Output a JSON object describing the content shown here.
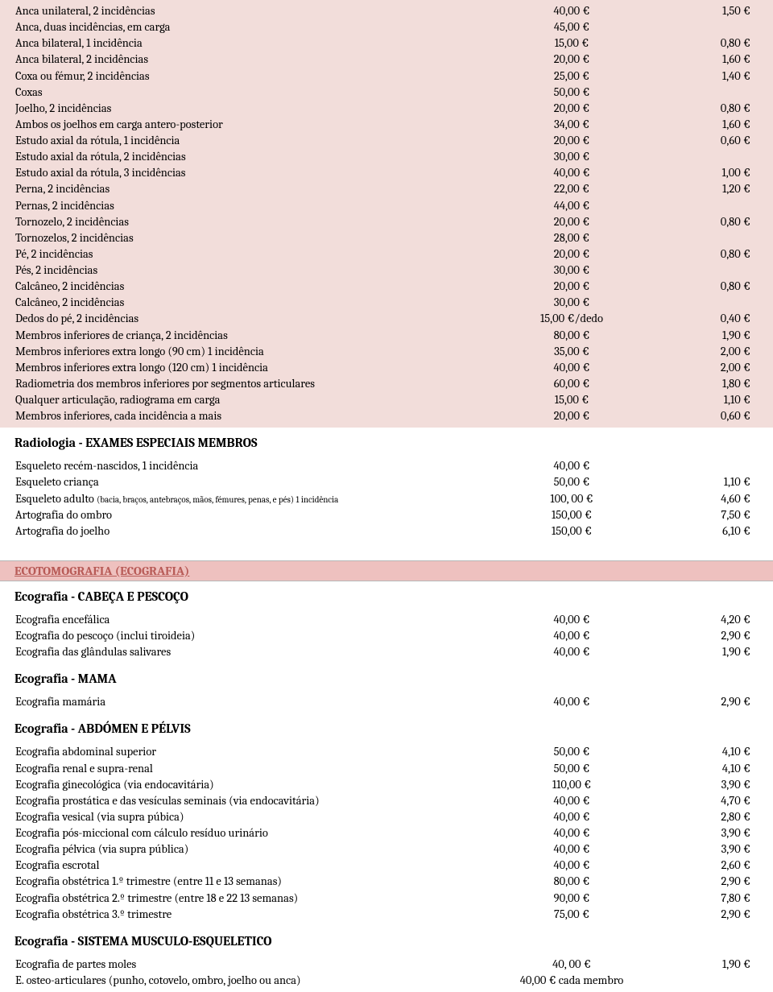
{
  "block1": {
    "rows": [
      {
        "desc": "Anca unilateral, 2 incidências",
        "c2": "40,00 €",
        "c3": "1,50 €"
      },
      {
        "desc": "Anca, duas incidências, em carga",
        "c2": "45,00 €",
        "c3": ""
      },
      {
        "desc": "Anca bilateral, 1 incidência",
        "c2": "15,00 €",
        "c3": "0,80 €"
      },
      {
        "desc": "Anca bilateral, 2 incidências",
        "c2": "20,00 €",
        "c3": "1,60 €"
      },
      {
        "desc": "Coxa ou fémur, 2 incidências",
        "c2": "25,00 €",
        "c3": "1,40 €"
      },
      {
        "desc": "Coxas",
        "c2": "50,00 €",
        "c3": ""
      },
      {
        "desc": "Joelho, 2 incidências",
        "c2": "20,00 €",
        "c3": "0,80 €"
      },
      {
        "desc": "Ambos os joelhos em carga antero-posterior",
        "c2": "34,00 €",
        "c3": "1,60 €"
      },
      {
        "desc": "Estudo axial da rótula, 1 incidência",
        "c2": "20,00 €",
        "c3": "0,60 €"
      },
      {
        "desc": "Estudo axial da rótula, 2 incidências",
        "c2": "30,00 €",
        "c3": ""
      },
      {
        "desc": "Estudo axial da rótula, 3 incidências",
        "c2": "40,00 €",
        "c3": "1,00 €"
      },
      {
        "desc": "Perna, 2 incidências",
        "c2": "22,00 €",
        "c3": "1,20 €"
      },
      {
        "desc": "Pernas, 2 incidências",
        "c2": "44,00 €",
        "c3": ""
      },
      {
        "desc": "Tornozelo, 2 incidências",
        "c2": "20,00 €",
        "c3": "0,80 €"
      },
      {
        "desc": "Tornozelos, 2 incidências",
        "c2": "28,00 €",
        "c3": ""
      },
      {
        "desc": "Pé, 2 incidências",
        "c2": "20,00 €",
        "c3": "0,80 €"
      },
      {
        "desc": "Pés, 2 incidências",
        "c2": "30,00 €",
        "c3": ""
      },
      {
        "desc": "Calcâneo, 2 incidências",
        "c2": "20,00 €",
        "c3": "0,80 €"
      },
      {
        "desc": "Calcâneo, 2 incidências",
        "c2": "30,00 €",
        "c3": ""
      },
      {
        "desc": "Dedos do pé, 2 incidências",
        "c2": "15,00 €/dedo",
        "c3": "0,40 €"
      },
      {
        "desc": "Membros inferiores de criança, 2 incidências",
        "c2": "80,00 €",
        "c3": "1,90 €"
      },
      {
        "desc": "Membros inferiores extra longo (90 cm) 1 incidência",
        "c2": "35,00 €",
        "c3": "2,00 €"
      },
      {
        "desc": "Membros inferiores extra longo (120 cm) 1 incidência",
        "c2": "40,00 €",
        "c3": "2,00 €"
      },
      {
        "desc": "Radiometria dos membros inferiores por segmentos articulares",
        "c2": "60,00 €",
        "c3": "1,80 €"
      },
      {
        "desc": "Qualquer articulação, radiograma em carga",
        "c2": "15,00 €",
        "c3": "1,10 €"
      },
      {
        "desc": "Membros inferiores, cada incidência a mais",
        "c2": "20,00 €",
        "c3": "0,60 €"
      }
    ]
  },
  "heading1": "Radiologia - EXAMES ESPECIAIS MEMBROS",
  "block2": {
    "rows": [
      {
        "desc": "Esqueleto recém-nascidos, 1 incidência",
        "c2": "40,00 €",
        "c3": ""
      },
      {
        "desc": "Esqueleto criança",
        "c2": "50,00 €",
        "c3": "1,10 €"
      },
      {
        "desc_main": "Esqueleto adulto ",
        "desc_sub": "(bacia, braços, antebraços, mãos, fémures, penas, e pés) 1 incidência",
        "c2": "100, 00 €",
        "c3": "4,60 €"
      },
      {
        "desc": "Artografia do ombro",
        "c2": "150,00 €",
        "c3": "7,50 €"
      },
      {
        "desc": "Artografia do joelho",
        "c2": "150,00 €",
        "c3": "6,10 €"
      }
    ]
  },
  "banner1": "ECOTOMOGRAFIA (ECOGRAFIA)",
  "heading2": "Ecografia - CABEÇA E PESCOÇO",
  "block3": {
    "rows": [
      {
        "desc": "Ecografia encefálica",
        "c2": "40,00 €",
        "c3": "4,20 €"
      },
      {
        "desc": "Ecografia do pescoço (inclui tiroideia)",
        "c2": "40,00 €",
        "c3": "2,90 €"
      },
      {
        "desc": "Ecografia das glândulas salivares",
        "c2": "40,00 €",
        "c3": "1,90 €"
      }
    ]
  },
  "heading3": "Ecografia - MAMA",
  "block4": {
    "rows": [
      {
        "desc": "Ecografia mamária",
        "c2": "40,00 €",
        "c3": "2,90 €"
      }
    ]
  },
  "heading4": "Ecografia - ABDÓMEN E PÉLVIS",
  "block5": {
    "rows": [
      {
        "desc": "Ecografia abdominal superior",
        "c2": "50,00 €",
        "c3": "4,10 €"
      },
      {
        "desc": "Ecografia renal e supra-renal",
        "c2": "50,00 €",
        "c3": "4,10 €"
      },
      {
        "desc": "Ecografia ginecológica (via endocavitária)",
        "c2": "110,00 €",
        "c3": "3,90 €"
      },
      {
        "desc": "Ecografia prostática e das vesículas seminais (via endocavitária)",
        "c2": "40,00 €",
        "c3": "4,70 €"
      },
      {
        "desc": "Ecografia vesical (via supra púbica)",
        "c2": "40,00 €",
        "c3": "2,80 €"
      },
      {
        "desc": "Ecografia pós-miccional com cálculo resíduo urinário",
        "c2": "40,00 €",
        "c3": "3,90 €"
      },
      {
        "desc": "Ecografia pélvica (via supra pública)",
        "c2": "40,00 €",
        "c3": "3,90 €"
      },
      {
        "desc": "Ecografia escrotal",
        "c2": "40,00 €",
        "c3": "2,60 €"
      },
      {
        "desc": "Ecografia obstétrica 1.º trimestre (entre 11 e 13 semanas)",
        "c2": "80,00 €",
        "c3": "2,90 €"
      },
      {
        "desc": "Ecografia obstétrica 2.º trimestre (entre 18 e 22 13 semanas)",
        "c2": "90,00 €",
        "c3": "7,80 €"
      },
      {
        "desc": "Ecografia obstétrica 3.º trimestre",
        "c2": "75,00 €",
        "c3": "2,90 €"
      }
    ]
  },
  "heading5": "Ecografia - SISTEMA MUSCULO-ESQUELETICO",
  "block6": {
    "rows": [
      {
        "desc": "Ecografia de partes moles",
        "c2": "40, 00 €",
        "c3": "1,90 €"
      },
      {
        "desc": "E. osteo-articulares (punho, cotovelo, ombro, joelho ou anca)",
        "c2": "40,00 € cada membro",
        "c3": ""
      }
    ]
  }
}
